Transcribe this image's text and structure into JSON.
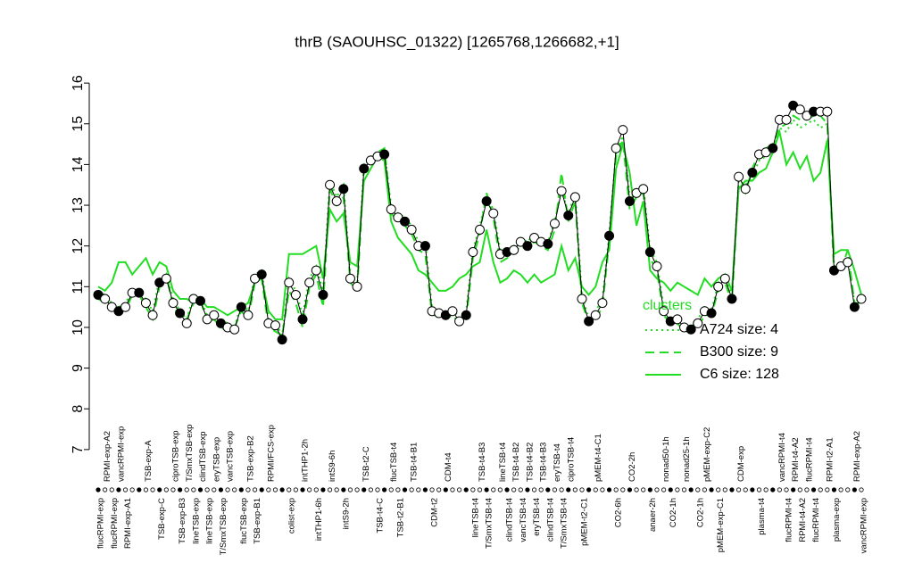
{
  "chart_data": {
    "type": "line",
    "title": "thrB (SAOUHSC_01322) [1265768,1266682,+1]",
    "categories": [
      "flucRPMI-exp",
      "RPMI-exp-A2",
      "flucRPMI-exp",
      "vancRPMI-exp",
      "RPMI-exp-A1",
      null,
      null,
      "TSB-exp-A",
      null,
      "TSB-exp-C",
      null,
      "ciproTSB-exp",
      "TSB-exp-B3",
      "T/SmxTSB-exp",
      "lineTSB-exp",
      "clindTSB-exp",
      "lineTSB-exp",
      "eryTSB-exp",
      "T/SmxTSB-exp",
      "vancTSB-exp",
      null,
      "flucTSB-exp",
      "TSB-exp-B2",
      "TSB-exp-B1",
      null,
      "RPMI/FCS-exp",
      null,
      null,
      "colist-exp",
      null,
      "intTHP1-2h",
      null,
      "intTHP1-6h",
      null,
      "intS9-6h",
      null,
      "intS9-2h",
      null,
      null,
      "TSB-t2-C",
      null,
      "TSB-t4-C",
      null,
      "flucTSB-t4",
      "TSB-t2-B1",
      null,
      "TSB-t4-B1",
      null,
      null,
      "CDM-t2",
      null,
      "CDM-t4",
      null,
      null,
      null,
      "lineTSB-t4",
      "TSB-t4-B3",
      "T/SmxTSB-t4",
      null,
      "lineTSB-t4",
      "clindTSB-t4",
      "TSB-t4-B2",
      "vancTSB-t4",
      "TSB-t4-B2",
      "eryTSB-t4",
      "TSB-t4-B3",
      "clindTSB-t4",
      "eryTSB-t4",
      "T/SmxTSB-t4",
      "ciproTSB-t4",
      null,
      "pMEM-t2-C1",
      null,
      "pMEM-t4-C1",
      null,
      null,
      "CO2-6h",
      null,
      "CO2-2h",
      null,
      null,
      "anaer-2h",
      null,
      "nonad50-1h",
      "CO2-1h",
      null,
      "nonad25-1h",
      null,
      "CO2-1h",
      "pMEM-exp-C2",
      null,
      "pMEM-exp-C1",
      null,
      null,
      "CDM-exp",
      null,
      null,
      "plasma-t4",
      null,
      null,
      "vancRPMI-t4",
      "flucRPMI-t4",
      "RPMI-t4-A2",
      "RPMI-t4-A2",
      "flucRPMI-t4",
      "flucRPMI-t4",
      null,
      "RPMI-t2-A1",
      "plasma-exp",
      null,
      null,
      "RPMI-exp-A2",
      "vancRPMI-exp"
    ],
    "values": [
      10.8,
      10.7,
      10.5,
      10.4,
      10.5,
      10.85,
      10.85,
      10.6,
      10.3,
      11.1,
      11.2,
      10.6,
      10.35,
      10.1,
      10.7,
      10.65,
      10.2,
      10.3,
      10.1,
      10.0,
      9.95,
      10.5,
      10.3,
      11.2,
      11.3,
      10.1,
      10.05,
      9.7,
      11.1,
      10.8,
      10.2,
      11.1,
      11.4,
      10.8,
      13.5,
      13.1,
      13.4,
      11.2,
      11.0,
      13.9,
      14.1,
      14.2,
      14.25,
      12.9,
      12.7,
      12.6,
      12.4,
      12.0,
      12.0,
      10.4,
      10.35,
      10.3,
      10.4,
      10.15,
      10.3,
      11.85,
      12.4,
      13.1,
      12.8,
      11.8,
      11.85,
      11.9,
      12.1,
      12.0,
      12.2,
      12.1,
      12.05,
      12.55,
      13.35,
      12.75,
      13.2,
      10.7,
      10.15,
      10.3,
      10.6,
      12.25,
      14.4,
      14.85,
      13.1,
      13.3,
      13.4,
      11.85,
      11.5,
      10.4,
      10.15,
      10.2,
      10.0,
      9.95,
      10.1,
      10.4,
      10.35,
      11.0,
      11.2,
      10.7,
      13.7,
      13.4,
      13.8,
      14.25,
      14.3,
      14.4,
      15.1,
      15.1,
      15.45,
      15.35,
      15.2,
      15.3,
      15.3,
      15.3,
      11.4,
      11.5,
      11.6,
      10.5,
      10.7
    ],
    "color": "#000000",
    "series": [
      {
        "name": "A724 size: 4",
        "color": "#22dd22",
        "style": "dotted",
        "values": [
          10.9,
          10.8,
          10.6,
          10.5,
          10.6,
          10.9,
          10.9,
          10.7,
          10.4,
          11.2,
          11.3,
          10.7,
          10.4,
          10.2,
          10.8,
          10.7,
          10.3,
          10.4,
          10.2,
          10.1,
          10.0,
          10.6,
          10.4,
          11.3,
          11.4,
          10.2,
          10.1,
          9.8,
          11.2,
          10.9,
          10.3,
          11.2,
          11.5,
          10.9,
          13.6,
          13.2,
          13.5,
          11.3,
          11.1,
          14.0,
          14.2,
          14.3,
          14.35,
          13.0,
          12.8,
          12.7,
          12.5,
          12.1,
          12.1,
          10.5,
          10.4,
          10.4,
          10.5,
          10.2,
          10.4,
          11.9,
          12.5,
          13.2,
          12.9,
          11.9,
          11.9,
          12.0,
          12.2,
          12.1,
          12.3,
          12.2,
          12.1,
          12.6,
          13.4,
          12.8,
          13.3,
          10.8,
          10.2,
          10.4,
          10.7,
          12.3,
          14.3,
          14.7,
          13.2,
          13.4,
          13.5,
          11.9,
          11.6,
          10.5,
          10.2,
          10.3,
          10.1,
          10.0,
          10.2,
          10.5,
          10.4,
          11.1,
          11.3,
          10.8,
          13.6,
          13.5,
          13.7,
          14.1,
          14.2,
          14.3,
          14.9,
          14.8,
          15.1,
          14.9,
          15.0,
          15.1,
          14.9,
          15.0,
          11.5,
          11.6,
          11.7,
          10.6,
          10.8
        ]
      },
      {
        "name": "B300 size: 9",
        "color": "#22dd22",
        "style": "dashed",
        "values": [
          10.7,
          10.6,
          10.4,
          10.5,
          10.4,
          10.8,
          10.8,
          10.5,
          10.2,
          11.0,
          11.3,
          10.5,
          10.3,
          10.2,
          10.6,
          10.7,
          10.1,
          10.2,
          10.0,
          9.9,
          10.0,
          10.4,
          10.2,
          11.1,
          11.2,
          10.0,
          9.9,
          9.8,
          10.9,
          10.6,
          10.0,
          11.0,
          11.3,
          10.5,
          13.4,
          13.0,
          13.2,
          11.1,
          10.9,
          13.8,
          14.0,
          14.3,
          14.4,
          12.8,
          12.6,
          12.5,
          12.3,
          11.9,
          11.8,
          10.3,
          10.3,
          10.2,
          10.3,
          10.1,
          10.2,
          11.7,
          12.3,
          13.3,
          12.7,
          11.6,
          11.7,
          11.8,
          12.0,
          11.9,
          12.1,
          12.0,
          11.9,
          12.4,
          13.8,
          12.6,
          13.1,
          10.6,
          10.1,
          10.2,
          10.5,
          12.1,
          14.2,
          14.6,
          12.9,
          13.2,
          13.3,
          11.7,
          11.4,
          10.3,
          10.1,
          10.1,
          9.9,
          9.9,
          10.0,
          10.3,
          10.3,
          10.9,
          11.1,
          10.6,
          13.5,
          13.3,
          13.9,
          14.3,
          14.4,
          14.5,
          14.9,
          15.0,
          15.2,
          15.1,
          15.1,
          15.2,
          15.2,
          15.0,
          11.3,
          11.4,
          11.9,
          10.6,
          10.6
        ]
      },
      {
        "name": "C6 size: 128",
        "color": "#22dd22",
        "style": "solid",
        "values": [
          11.0,
          10.9,
          11.1,
          11.6,
          11.6,
          11.3,
          11.5,
          11.7,
          11.3,
          11.6,
          11.5,
          10.9,
          10.7,
          10.7,
          10.6,
          10.7,
          10.5,
          10.5,
          10.4,
          10.3,
          10.4,
          10.5,
          10.6,
          11.1,
          11.2,
          10.4,
          10.2,
          10.2,
          11.8,
          11.8,
          11.8,
          11.9,
          12.0,
          11.2,
          12.9,
          12.6,
          12.8,
          11.6,
          11.5,
          13.6,
          13.9,
          14.2,
          14.1,
          12.6,
          12.2,
          12.0,
          11.8,
          11.4,
          11.3,
          11.1,
          10.9,
          10.9,
          11.0,
          11.2,
          11.3,
          11.5,
          11.6,
          12.4,
          11.6,
          11.1,
          11.2,
          11.4,
          11.3,
          11.1,
          11.3,
          11.1,
          11.2,
          11.3,
          12.0,
          11.4,
          11.7,
          11.0,
          10.8,
          11.0,
          11.6,
          11.9,
          13.9,
          14.5,
          13.8,
          12.5,
          13.1,
          11.4,
          11.2,
          11.1,
          10.9,
          11.1,
          11.0,
          10.9,
          10.8,
          11.2,
          11.0,
          11.2,
          11.3,
          10.9,
          13.4,
          13.6,
          13.6,
          13.8,
          13.9,
          14.3,
          14.8,
          14.0,
          14.3,
          13.9,
          14.2,
          13.6,
          13.8,
          14.6,
          11.8,
          11.9,
          11.9,
          11.4,
          10.8
        ]
      }
    ],
    "legend_title": "clusters",
    "ylim": [
      6.8,
      16.2
    ],
    "yticks": [
      7,
      8,
      9,
      10,
      11,
      12,
      13,
      14,
      15,
      16
    ]
  }
}
